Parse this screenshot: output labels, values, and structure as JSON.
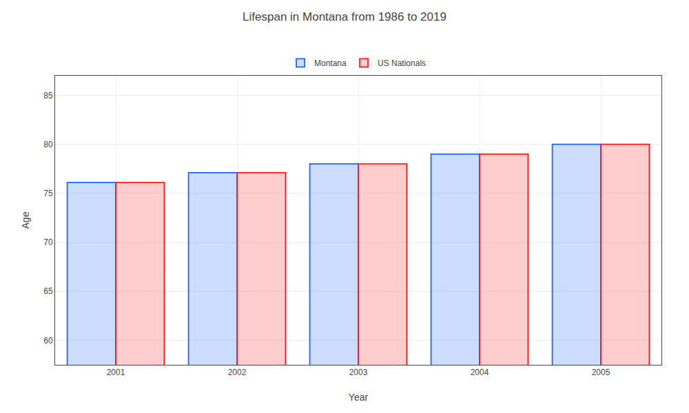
{
  "chart_data": {
    "type": "bar",
    "title": "Lifespan in Montana from 1986 to 2019",
    "xlabel": "Year",
    "ylabel": "Age",
    "categories": [
      "2001",
      "2002",
      "2003",
      "2004",
      "2005"
    ],
    "series": [
      {
        "name": "Montana",
        "color": "#1a66ff",
        "values": [
          76.1,
          77.1,
          78.0,
          79.0,
          80.0
        ]
      },
      {
        "name": "US Nationals",
        "color": "#ff1a1a",
        "values": [
          76.1,
          77.1,
          78.0,
          79.0,
          80.0
        ]
      }
    ],
    "ylim": [
      57.5,
      87
    ],
    "yticks": [
      60,
      65,
      70,
      75,
      80,
      85
    ],
    "grid": true,
    "legend": "top"
  }
}
